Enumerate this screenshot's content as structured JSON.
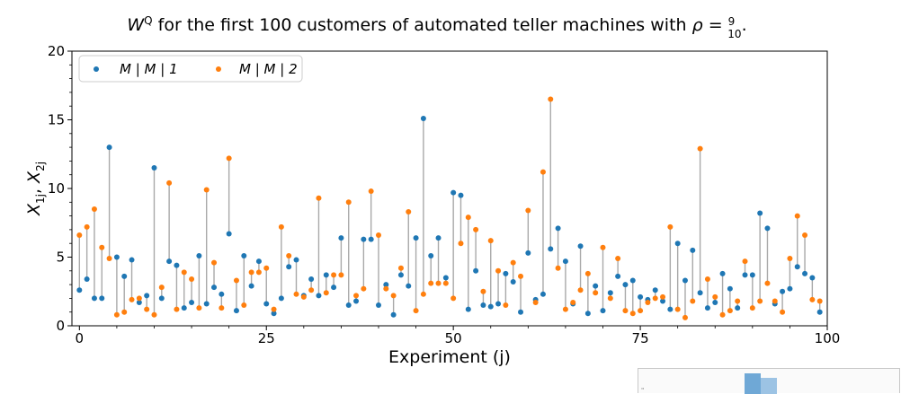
{
  "chart_data": {
    "type": "scatter",
    "title": "W^Q for the first 100 customers of automated teller machines with ρ = 9/10.",
    "title_parts": {
      "main": "W",
      "sup": "Q",
      "text": " for the first 100 customers of automated teller machines with ",
      "rho": "ρ = ",
      "frac_num": "9",
      "frac_den": "10",
      "end": "."
    },
    "xlabel": "Experiment (j)",
    "ylabel": "X_{1j}, X_{2j}",
    "ylabel_parts": {
      "x1": "X",
      "s1": "1j",
      "sep": ", ",
      "x2": "X",
      "s2": "2j"
    },
    "xlim": [
      -1,
      100
    ],
    "ylim": [
      0,
      20
    ],
    "x_ticks": [
      0,
      25,
      50,
      75,
      100
    ],
    "x_tick_labels": [
      "0",
      "25",
      "50",
      "75",
      "100"
    ],
    "y_ticks": [
      0,
      5,
      10,
      15,
      20
    ],
    "y_tick_labels": [
      "0",
      "5",
      "10",
      "15",
      "20"
    ],
    "legend_position": "top-left",
    "connector_color": "#a9a9a9",
    "series": [
      {
        "name": "M | M | 1",
        "color": "#1f77b4",
        "values": [
          2.6,
          3.4,
          2.0,
          2.0,
          13.0,
          5.0,
          3.6,
          4.8,
          1.7,
          2.2,
          11.5,
          2.0,
          4.7,
          4.4,
          1.3,
          1.7,
          5.1,
          1.6,
          2.8,
          2.3,
          6.7,
          1.1,
          5.1,
          2.9,
          4.7,
          1.6,
          0.9,
          2.0,
          4.3,
          4.8,
          2.2,
          3.4,
          2.2,
          3.7,
          2.8,
          6.4,
          1.5,
          1.8,
          6.3,
          6.3,
          1.5,
          3.0,
          0.8,
          3.7,
          2.9,
          6.4,
          15.1,
          5.1,
          6.4,
          3.5,
          9.7,
          9.5,
          1.2,
          4.0,
          1.5,
          1.4,
          1.6,
          3.8,
          3.2,
          1.0,
          5.3,
          1.9,
          2.3,
          5.6,
          7.1,
          4.7,
          1.6,
          5.8,
          0.9,
          2.9,
          1.1,
          2.4,
          3.6,
          3.0,
          3.3,
          2.1,
          1.9,
          2.6,
          1.8,
          1.2,
          6.0,
          3.3,
          5.5,
          2.4,
          1.3,
          1.7,
          3.8,
          2.7,
          1.3,
          3.7,
          3.7,
          8.2,
          7.1,
          1.6,
          2.5,
          2.7,
          4.3,
          3.8,
          3.5,
          1.0
        ]
      },
      {
        "name": "M | M | 2",
        "color": "#ff7f0e",
        "values": [
          6.6,
          7.2,
          8.5,
          5.7,
          4.9,
          0.8,
          1.0,
          1.9,
          2.0,
          1.2,
          0.8,
          2.8,
          10.4,
          1.2,
          3.9,
          3.4,
          1.3,
          9.9,
          4.6,
          1.3,
          12.2,
          3.3,
          1.5,
          3.9,
          3.9,
          4.2,
          1.2,
          7.2,
          5.1,
          2.3,
          2.1,
          2.6,
          9.3,
          2.4,
          3.7,
          3.7,
          9.0,
          2.2,
          2.7,
          9.8,
          6.6,
          2.7,
          2.2,
          4.2,
          8.3,
          1.1,
          2.3,
          3.1,
          3.1,
          3.1,
          2.0,
          6.0,
          7.9,
          7.0,
          2.5,
          6.2,
          4.0,
          1.5,
          4.6,
          3.6,
          8.4,
          1.7,
          11.2,
          16.5,
          4.2,
          1.2,
          1.7,
          2.6,
          3.8,
          2.4,
          5.7,
          2.0,
          4.9,
          1.1,
          0.9,
          1.1,
          1.7,
          2.0,
          2.1,
          7.2,
          1.2,
          0.6,
          1.8,
          12.9,
          3.4,
          2.1,
          0.8,
          1.1,
          1.8,
          4.7,
          1.3,
          1.8,
          3.1,
          1.8,
          1.0,
          4.9,
          8.0,
          6.6,
          1.9,
          1.8
        ]
      }
    ]
  }
}
